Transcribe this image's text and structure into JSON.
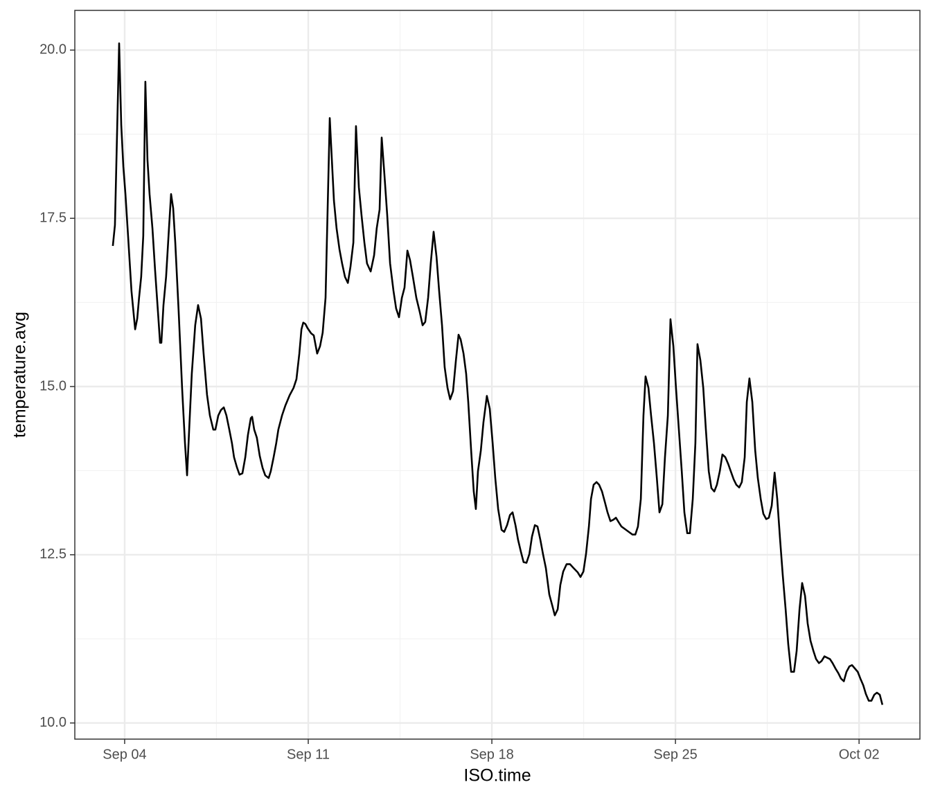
{
  "chart_data": {
    "type": "line",
    "xlabel": "ISO.time",
    "ylabel": "temperature.avg",
    "color": "#000000",
    "grid": true,
    "xlim": [
      2.1,
      34.32
    ],
    "ylim": [
      9.76,
      20.59
    ],
    "xticks": [
      {
        "value": 4,
        "label": "Sep 04"
      },
      {
        "value": 11,
        "label": "Sep 11"
      },
      {
        "value": 18,
        "label": "Sep 18"
      },
      {
        "value": 25,
        "label": "Sep 25"
      },
      {
        "value": 32,
        "label": "Oct 02"
      }
    ],
    "yticks": [
      {
        "value": 10,
        "label": "10.0"
      },
      12.5,
      {
        "value": 15,
        "label": "15.0"
      },
      17.5,
      {
        "value": 20,
        "label": "20.0"
      }
    ],
    "x": [
      3.55,
      3.63,
      3.79,
      3.87,
      3.95,
      4.03,
      4.13,
      4.26,
      4.4,
      4.48,
      4.55,
      4.63,
      4.71,
      4.79,
      4.87,
      4.95,
      5.06,
      5.16,
      5.27,
      5.35,
      5.4,
      5.48,
      5.58,
      5.69,
      5.77,
      5.85,
      5.93,
      6.06,
      6.19,
      6.3,
      6.38,
      6.46,
      6.56,
      6.69,
      6.8,
      6.91,
      7.01,
      7.14,
      7.25,
      7.38,
      7.46,
      7.57,
      7.67,
      7.78,
      7.88,
      7.99,
      8.09,
      8.17,
      8.28,
      8.38,
      8.49,
      8.6,
      8.7,
      8.81,
      8.86,
      8.94,
      9.04,
      9.15,
      9.26,
      9.36,
      9.49,
      9.57,
      9.68,
      9.78,
      9.86,
      10.0,
      10.13,
      10.29,
      10.44,
      10.55,
      10.66,
      10.74,
      10.81,
      10.89,
      10.97,
      11.11,
      11.21,
      11.34,
      11.45,
      11.55,
      11.66,
      11.82,
      11.9,
      11.98,
      12.08,
      12.19,
      12.29,
      12.4,
      12.51,
      12.61,
      12.72,
      12.82,
      12.93,
      13.03,
      13.14,
      13.24,
      13.38,
      13.51,
      13.61,
      13.72,
      13.8,
      13.9,
      14.01,
      14.12,
      14.25,
      14.35,
      14.46,
      14.57,
      14.67,
      14.78,
      14.88,
      14.99,
      15.12,
      15.25,
      15.36,
      15.46,
      15.57,
      15.67,
      15.78,
      15.89,
      15.99,
      16.1,
      16.2,
      16.31,
      16.41,
      16.52,
      16.63,
      16.73,
      16.81,
      16.92,
      17.02,
      17.1,
      17.21,
      17.31,
      17.39,
      17.47,
      17.58,
      17.68,
      17.81,
      17.92,
      18.03,
      18.13,
      18.24,
      18.37,
      18.47,
      18.58,
      18.69,
      18.79,
      18.9,
      19.0,
      19.11,
      19.21,
      19.32,
      19.43,
      19.53,
      19.64,
      19.74,
      19.85,
      19.95,
      20.06,
      20.19,
      20.3,
      20.4,
      20.51,
      20.61,
      20.72,
      20.85,
      20.98,
      21.12,
      21.27,
      21.38,
      21.49,
      21.59,
      21.7,
      21.78,
      21.88,
      21.99,
      22.09,
      22.2,
      22.31,
      22.41,
      22.52,
      22.63,
      22.73,
      22.84,
      22.94,
      23.15,
      23.36,
      23.47,
      23.57,
      23.68,
      23.78,
      23.86,
      23.97,
      24.07,
      24.18,
      24.29,
      24.39,
      24.5,
      24.6,
      24.71,
      24.81,
      24.92,
      25.02,
      25.13,
      25.24,
      25.34,
      25.45,
      25.55,
      25.66,
      25.76,
      25.84,
      25.95,
      26.06,
      26.16,
      26.27,
      26.37,
      26.48,
      26.58,
      26.69,
      26.79,
      26.9,
      27.01,
      27.11,
      27.22,
      27.32,
      27.43,
      27.53,
      27.64,
      27.72,
      27.82,
      27.93,
      28.04,
      28.14,
      28.25,
      28.35,
      28.46,
      28.56,
      28.67,
      28.78,
      28.88,
      28.99,
      29.09,
      29.2,
      29.3,
      29.41,
      29.52,
      29.62,
      29.73,
      29.83,
      29.94,
      30.04,
      30.15,
      30.26,
      30.36,
      30.47,
      30.57,
      30.68,
      30.78,
      30.89,
      30.99,
      31.1,
      31.21,
      31.31,
      31.42,
      31.52,
      31.63,
      31.73,
      31.84,
      31.95,
      32.05,
      32.16,
      32.26,
      32.37,
      32.47,
      32.58,
      32.68,
      32.79,
      32.89
    ],
    "values": [
      17.09,
      17.4,
      20.1,
      18.89,
      18.27,
      17.86,
      17.24,
      16.42,
      15.85,
      16.01,
      16.32,
      16.63,
      17.24,
      19.53,
      18.37,
      17.86,
      17.35,
      16.73,
      16.11,
      15.65,
      15.65,
      16.21,
      16.63,
      17.35,
      17.86,
      17.65,
      17.14,
      16.11,
      14.98,
      14.16,
      13.68,
      14.36,
      15.19,
      15.91,
      16.21,
      16.01,
      15.49,
      14.88,
      14.57,
      14.36,
      14.36,
      14.57,
      14.65,
      14.69,
      14.57,
      14.36,
      14.16,
      13.95,
      13.8,
      13.69,
      13.71,
      13.95,
      14.28,
      14.53,
      14.55,
      14.36,
      14.24,
      13.97,
      13.79,
      13.68,
      13.64,
      13.74,
      13.95,
      14.16,
      14.36,
      14.57,
      14.72,
      14.87,
      14.98,
      15.11,
      15.49,
      15.85,
      15.95,
      15.93,
      15.87,
      15.79,
      15.76,
      15.49,
      15.6,
      15.8,
      16.32,
      18.99,
      18.37,
      17.76,
      17.35,
      17.04,
      16.83,
      16.63,
      16.54,
      16.78,
      17.14,
      18.87,
      17.96,
      17.55,
      17.14,
      16.83,
      16.71,
      16.95,
      17.35,
      17.63,
      18.7,
      18.17,
      17.55,
      16.83,
      16.42,
      16.16,
      16.03,
      16.32,
      16.47,
      17.02,
      16.88,
      16.63,
      16.32,
      16.11,
      15.91,
      15.96,
      16.32,
      16.83,
      17.3,
      16.93,
      16.42,
      15.91,
      15.29,
      14.98,
      14.81,
      14.93,
      15.39,
      15.77,
      15.7,
      15.49,
      15.19,
      14.77,
      14.05,
      13.44,
      13.18,
      13.74,
      14.05,
      14.47,
      14.86,
      14.67,
      14.16,
      13.64,
      13.18,
      12.87,
      12.84,
      12.94,
      13.09,
      13.13,
      12.94,
      12.72,
      12.54,
      12.39,
      12.38,
      12.51,
      12.77,
      12.94,
      12.92,
      12.72,
      12.51,
      12.3,
      11.91,
      11.75,
      11.6,
      11.69,
      12.05,
      12.25,
      12.36,
      12.36,
      12.3,
      12.24,
      12.17,
      12.25,
      12.51,
      12.92,
      13.33,
      13.54,
      13.58,
      13.54,
      13.44,
      13.28,
      13.13,
      13.0,
      13.02,
      13.05,
      12.98,
      12.92,
      12.86,
      12.8,
      12.8,
      12.92,
      13.33,
      14.57,
      15.15,
      14.98,
      14.57,
      14.16,
      13.64,
      13.13,
      13.25,
      13.95,
      14.57,
      16.0,
      15.6,
      14.98,
      14.36,
      13.74,
      13.13,
      12.82,
      12.82,
      13.33,
      14.16,
      15.63,
      15.39,
      14.98,
      14.36,
      13.74,
      13.49,
      13.44,
      13.54,
      13.74,
      13.99,
      13.95,
      13.85,
      13.74,
      13.62,
      13.54,
      13.5,
      13.58,
      13.95,
      14.77,
      15.12,
      14.77,
      14.05,
      13.64,
      13.33,
      13.11,
      13.03,
      13.05,
      13.23,
      13.72,
      13.33,
      12.72,
      12.2,
      11.69,
      11.17,
      10.76,
      10.76,
      11.07,
      11.69,
      12.08,
      11.89,
      11.48,
      11.22,
      11.07,
      10.95,
      10.89,
      10.92,
      10.99,
      10.97,
      10.95,
      10.89,
      10.81,
      10.74,
      10.66,
      10.62,
      10.76,
      10.84,
      10.86,
      10.81,
      10.76,
      10.66,
      10.56,
      10.43,
      10.33,
      10.33,
      10.42,
      10.45,
      10.42,
      10.27
    ]
  }
}
